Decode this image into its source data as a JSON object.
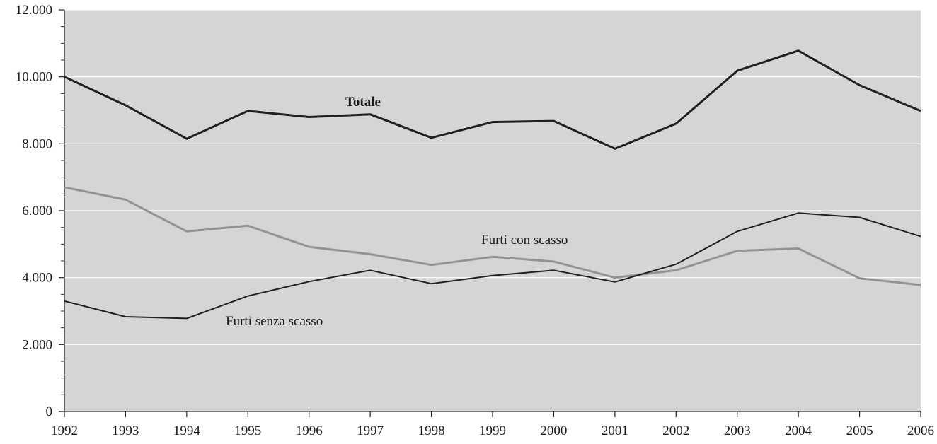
{
  "chart_data": {
    "type": "line",
    "x": [
      "1992",
      "1993",
      "1994",
      "1995",
      "1996",
      "1997",
      "1998",
      "1999",
      "2000",
      "2001",
      "2002",
      "2003",
      "2004",
      "2005",
      "2006"
    ],
    "ylim": [
      0,
      12000
    ],
    "y_tick_values": [
      0,
      2000,
      4000,
      6000,
      8000,
      10000,
      12000
    ],
    "y_tick_labels": [
      "0",
      "2.000",
      "4.000",
      "6.000",
      "8.000",
      "10.000",
      "12.000"
    ],
    "grid": true,
    "plot_background": "#d4d5d7",
    "series": [
      {
        "name": "Totale",
        "label_year": "1997",
        "color": "#231f20",
        "values": [
          10000,
          9150,
          8150,
          8980,
          8800,
          8880,
          8180,
          8650,
          8680,
          7850,
          8600,
          10180,
          10780,
          9750,
          8980
        ]
      },
      {
        "name": "Furti con scasso",
        "label_year": "2000",
        "color": "#939393",
        "values": [
          6700,
          6330,
          5380,
          5550,
          4920,
          4700,
          4380,
          4620,
          4480,
          4000,
          4220,
          4800,
          4870,
          3980,
          3780
        ]
      },
      {
        "name": "Furti senza scasso",
        "label_year": "1996",
        "color": "#231f20",
        "values": [
          3300,
          2830,
          2780,
          3450,
          3880,
          4220,
          3820,
          4060,
          4220,
          3870,
          4400,
          5380,
          5930,
          5800,
          5230
        ]
      }
    ]
  }
}
